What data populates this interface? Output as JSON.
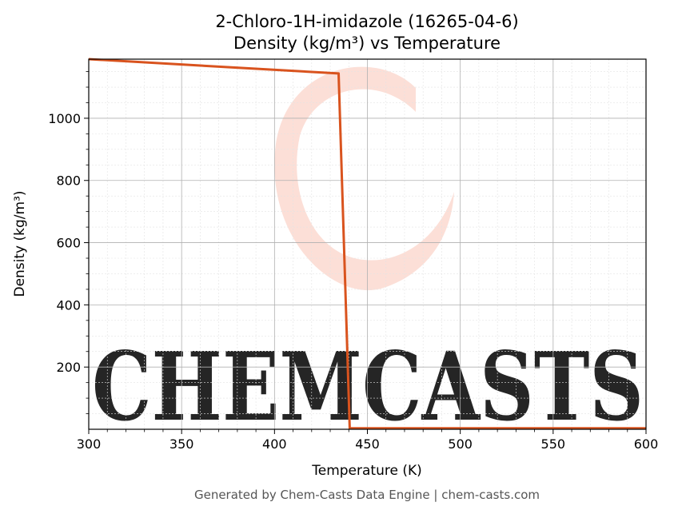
{
  "chart_data": {
    "type": "line",
    "title_line1": "2-Chloro-1H-imidazole (16265-04-6)",
    "title_line2": "Density (kg/m³) vs Temperature",
    "xlabel": "Temperature (K)",
    "ylabel": "Density (kg/m³)",
    "xlim": [
      300,
      600
    ],
    "ylim": [
      0,
      1190
    ],
    "x_ticks": [
      300,
      350,
      400,
      450,
      500,
      550,
      600
    ],
    "y_ticks": [
      200,
      400,
      600,
      800,
      1000
    ],
    "grid": true,
    "series": [
      {
        "color": "#d9531e",
        "points": [
          [
            300,
            1190
          ],
          [
            434.5,
            1144
          ],
          [
            440.5,
            3
          ],
          [
            600,
            3
          ]
        ]
      }
    ]
  },
  "watermark": {
    "text": "CHEMCASTS",
    "color": "#fbd9d0"
  },
  "footer": {
    "text": "Generated by Chem-Casts Data Engine | chem-casts.com"
  }
}
